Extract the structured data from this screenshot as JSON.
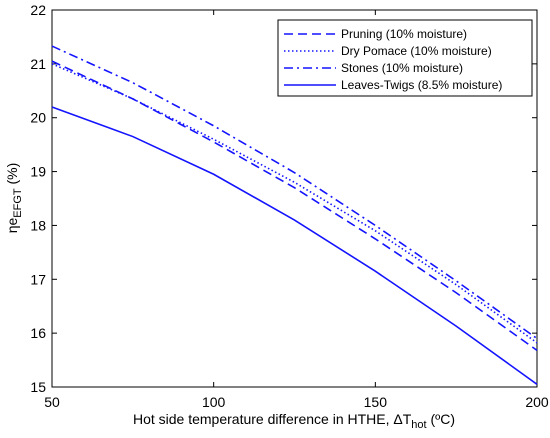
{
  "chart_data": {
    "type": "line",
    "xlabel": {
      "main": "Hot side temperature difference in HTHE, ",
      "symbol": "ΔT",
      "sub": "hot",
      "unit": " (ºC)"
    },
    "ylabel": {
      "main": "ηe",
      "sub": "EFGT",
      "unit": " (%)"
    },
    "xlim": [
      50,
      200
    ],
    "ylim": [
      15,
      22
    ],
    "xticks": [
      "50",
      "100",
      "150",
      "200"
    ],
    "yticks": [
      "15",
      "16",
      "17",
      "18",
      "19",
      "20",
      "21",
      "22"
    ],
    "grid": false,
    "legend_position": "top-right",
    "line_color": "#1414ff",
    "series": [
      {
        "name": "Pruning (10% moisture)",
        "style": "dashed",
        "x": [
          50,
          75,
          100,
          125,
          150,
          175,
          200
        ],
        "values": [
          21.05,
          20.35,
          19.55,
          18.7,
          17.75,
          16.75,
          15.68
        ]
      },
      {
        "name": "Dry Pomace (10% moisture)",
        "style": "dotted",
        "x": [
          50,
          75,
          100,
          125,
          150,
          175,
          200
        ],
        "values": [
          21.0,
          20.35,
          19.6,
          18.8,
          17.9,
          16.9,
          15.82
        ]
      },
      {
        "name": "Stones (10% moisture)",
        "style": "dashdot",
        "x": [
          50,
          75,
          100,
          125,
          150,
          175,
          200
        ],
        "values": [
          21.33,
          20.65,
          19.85,
          18.98,
          18.0,
          16.97,
          15.9
        ]
      },
      {
        "name": "Leaves-Twigs (8.5% moisture)",
        "style": "solid",
        "x": [
          50,
          75,
          100,
          125,
          150,
          175,
          200
        ],
        "values": [
          20.2,
          19.65,
          18.95,
          18.1,
          17.15,
          16.13,
          15.05
        ]
      }
    ]
  }
}
